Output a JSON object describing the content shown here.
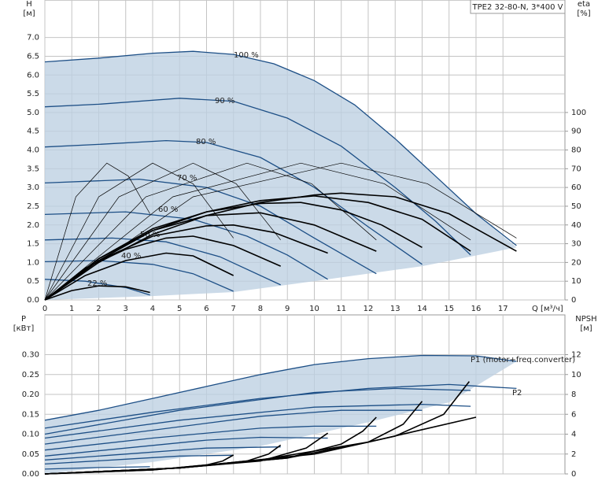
{
  "chart_data": [
    {
      "type": "line",
      "title": "TPE2 32-80-N, 3*400 V",
      "x_label": "Q [м³/ч]",
      "y_label": "H",
      "y_unit": "[м]",
      "y2_label": "eta",
      "y2_unit": "[%]",
      "xlim": [
        0,
        19.3
      ],
      "ylim": [
        0,
        8
      ],
      "y2lim": [
        0,
        160
      ],
      "grid": true,
      "x_tick_labels": true,
      "xticks": [
        0,
        1,
        2,
        3,
        4,
        5,
        6,
        7,
        8,
        9,
        10,
        11,
        12,
        13,
        14,
        15,
        16,
        17
      ],
      "yticks": [
        {
          "value": 0,
          "label": "0.0"
        },
        0.5,
        {
          "value": 1,
          "label": "1.0"
        },
        1.5,
        {
          "value": 2,
          "label": "2.0"
        },
        2.5,
        {
          "value": 3,
          "label": "3.0"
        },
        3.5,
        {
          "value": 4,
          "label": "4.0"
        },
        4.5,
        {
          "value": 5,
          "label": "5.0"
        },
        5.5,
        {
          "value": 6,
          "label": "6.0"
        },
        6.5,
        {
          "value": 7,
          "label": "7.0"
        }
      ],
      "y2ticks": [
        0,
        10,
        20,
        30,
        40,
        50,
        60,
        70,
        80,
        90,
        100
      ],
      "region": {
        "color": "#bccfe2",
        "x": [
          0,
          2,
          4,
          5.5,
          7,
          8.5,
          10,
          11.5,
          13,
          14.5,
          16,
          17.5,
          17.5,
          14,
          10.5,
          7,
          3.9,
          0
        ],
        "values": [
          6.35,
          6.45,
          6.58,
          6.63,
          6.55,
          6.3,
          5.85,
          5.2,
          4.3,
          3.3,
          2.3,
          1.4,
          1.4,
          0.9,
          0.55,
          0.21,
          0.1,
          0
        ]
      },
      "series": [
        {
          "name": "100 %",
          "color": "#1d4f86",
          "x": [
            0,
            2,
            4,
            5.5,
            7,
            8.5,
            10,
            11.5,
            13,
            14.5,
            16,
            17.5
          ],
          "values": [
            6.35,
            6.45,
            6.58,
            6.63,
            6.55,
            6.3,
            5.85,
            5.2,
            4.3,
            3.3,
            2.3,
            1.45
          ]
        },
        {
          "name": "90 %",
          "color": "#1d4f86",
          "x": [
            0,
            2,
            5,
            7,
            9,
            11,
            13,
            14.5,
            15.8
          ],
          "values": [
            5.15,
            5.22,
            5.38,
            5.3,
            4.85,
            4.1,
            3.0,
            2.1,
            1.2
          ]
        },
        {
          "name": "80 %",
          "color": "#1d4f86",
          "x": [
            0,
            2,
            4.5,
            6,
            8,
            10,
            12,
            14
          ],
          "values": [
            4.08,
            4.15,
            4.25,
            4.2,
            3.8,
            3.0,
            1.95,
            0.95
          ]
        },
        {
          "name": "70 %",
          "color": "#1d4f86",
          "x": [
            0,
            3.5,
            6,
            8,
            10,
            12.3
          ],
          "values": [
            3.12,
            3.22,
            3.0,
            2.5,
            1.65,
            0.7
          ]
        },
        {
          "name": "60 %",
          "color": "#1d4f86",
          "x": [
            0,
            3,
            5.5,
            7.5,
            9,
            10.5
          ],
          "values": [
            2.28,
            2.35,
            2.15,
            1.7,
            1.2,
            0.55
          ]
        },
        {
          "name": "50 %",
          "color": "#1d4f86",
          "x": [
            0,
            2.5,
            4.5,
            6.5,
            8.75
          ],
          "values": [
            1.6,
            1.65,
            1.55,
            1.15,
            0.4
          ]
        },
        {
          "name": "40 %",
          "color": "#1d4f86",
          "x": [
            0,
            2,
            4,
            5.5,
            7
          ],
          "values": [
            1.02,
            1.05,
            0.95,
            0.7,
            0.23
          ]
        },
        {
          "name": "22 %",
          "color": "#1d4f86",
          "x": [
            0,
            1.5,
            3,
            3.9
          ],
          "values": [
            0.55,
            0.5,
            0.33,
            0.13
          ]
        },
        {
          "axis": "y2",
          "color": "#000000",
          "x": [
            0,
            2,
            4,
            6,
            8,
            10,
            11,
            13,
            15,
            17.5
          ],
          "values": [
            0,
            20,
            35,
            45,
            52,
            56,
            57,
            55,
            46,
            26
          ]
        },
        {
          "axis": "y2",
          "color": "#000000",
          "x": [
            0,
            2,
            4,
            6,
            8,
            10,
            12,
            14,
            15.8
          ],
          "values": [
            0,
            21,
            37,
            47,
            53,
            55.5,
            52,
            43,
            26
          ]
        },
        {
          "axis": "y2",
          "color": "#000000",
          "x": [
            0,
            2,
            4,
            6,
            8,
            9.5,
            11,
            12.5,
            14
          ],
          "values": [
            0,
            22,
            38,
            47,
            51.5,
            52,
            48,
            40,
            28
          ]
        },
        {
          "axis": "y2",
          "color": "#000000",
          "x": [
            0,
            2,
            4,
            6,
            8,
            10,
            12.3
          ],
          "values": [
            0,
            22,
            37,
            45,
            46.5,
            40,
            26
          ]
        },
        {
          "axis": "y2",
          "color": "#000000",
          "x": [
            0,
            2,
            4,
            6,
            7,
            8.5,
            10.5
          ],
          "values": [
            0,
            21,
            34,
            39.5,
            40,
            36,
            25
          ]
        },
        {
          "axis": "y2",
          "color": "#000000",
          "x": [
            0,
            1.5,
            3,
            4.5,
            5.5,
            7,
            8.75
          ],
          "values": [
            0,
            17,
            27,
            33,
            34,
            29,
            18
          ]
        },
        {
          "axis": "y2",
          "color": "#000000",
          "x": [
            0,
            1.5,
            3,
            4.5,
            5.5,
            7
          ],
          "values": [
            0,
            13,
            21,
            25,
            23.5,
            13
          ]
        },
        {
          "axis": "y2",
          "color": "#000000",
          "x": [
            0,
            1,
            2,
            3,
            3.9
          ],
          "values": [
            0,
            5,
            7.5,
            7,
            4
          ]
        },
        {
          "axis": "y2",
          "color": "#000000",
          "weight": "thin",
          "x": [
            0,
            1.15,
            2.3,
            3.1,
            3.9
          ],
          "values": [
            0,
            55,
            73,
            66,
            46
          ]
        },
        {
          "axis": "y2",
          "color": "#000000",
          "weight": "thin",
          "x": [
            0,
            2,
            4,
            5.5,
            7
          ],
          "values": [
            0,
            55,
            73,
            62,
            33
          ]
        },
        {
          "axis": "y2",
          "color": "#000000",
          "weight": "thin",
          "x": [
            0,
            2.75,
            5.5,
            7.1,
            8.75
          ],
          "values": [
            0,
            55,
            73,
            62,
            32
          ]
        },
        {
          "axis": "y2",
          "color": "#000000",
          "weight": "thin",
          "x": [
            0,
            3.75,
            7.5,
            9.9,
            12.3
          ],
          "values": [
            0,
            55,
            73,
            62,
            32
          ]
        },
        {
          "axis": "y2",
          "color": "#000000",
          "weight": "thin",
          "x": [
            0,
            4.75,
            9.5,
            12.6,
            15.8
          ],
          "values": [
            0,
            55,
            73,
            62,
            32
          ]
        },
        {
          "axis": "y2",
          "color": "#000000",
          "weight": "thin",
          "x": [
            0,
            5.5,
            11,
            14.2,
            17.5
          ],
          "values": [
            0,
            55,
            73,
            62,
            33
          ]
        }
      ]
    },
    {
      "type": "line",
      "y_label": "P",
      "y_unit": "[кВт]",
      "y2_label": "NPSH",
      "y2_unit": "[м]",
      "xlim": [
        0,
        19.3
      ],
      "ylim": [
        0,
        0.4
      ],
      "y2lim": [
        0,
        16
      ],
      "grid": true,
      "x_tick_labels": false,
      "xticks": [
        0,
        1,
        2,
        3,
        4,
        5,
        6,
        7,
        8,
        9,
        10,
        11,
        12,
        13,
        14,
        15,
        16,
        17
      ],
      "yticks": [
        {
          "value": 0,
          "label": "0.00"
        },
        {
          "value": 0.05,
          "label": "0.05"
        },
        {
          "value": 0.1,
          "label": "0.10"
        },
        {
          "value": 0.15,
          "label": "0.15"
        },
        {
          "value": 0.2,
          "label": "0.20"
        },
        {
          "value": 0.25,
          "label": "0.25"
        },
        {
          "value": 0.3,
          "label": "0.30"
        }
      ],
      "y2ticks": [
        0,
        2,
        4,
        6,
        8,
        10,
        12
      ],
      "region": {
        "color": "#bccfe2",
        "x": [
          0,
          2,
          4,
          6,
          8,
          10,
          12,
          14,
          16,
          17.5,
          15,
          12,
          8,
          4,
          0
        ],
        "values": [
          0.135,
          0.16,
          0.19,
          0.22,
          0.25,
          0.275,
          0.29,
          0.298,
          0.297,
          0.283,
          0.18,
          0.13,
          0.07,
          0.03,
          0
        ]
      },
      "series": [
        {
          "name": "P1 (motor+freq.converter)",
          "color": "#1d4f86",
          "x": [
            0,
            2,
            4,
            6,
            8,
            10,
            12,
            14,
            16,
            17.5
          ],
          "values": [
            0.135,
            0.16,
            0.19,
            0.22,
            0.25,
            0.275,
            0.29,
            0.298,
            0.297,
            0.283
          ]
        },
        {
          "name": "P2",
          "color": "#1d4f86",
          "x": [
            0,
            4,
            8,
            12,
            15,
            17.5
          ],
          "values": [
            0.115,
            0.155,
            0.19,
            0.215,
            0.225,
            0.215
          ]
        },
        {
          "color": "#1d4f86",
          "x": [
            0,
            5,
            10,
            13,
            15.8
          ],
          "values": [
            0.1,
            0.16,
            0.205,
            0.215,
            0.21
          ]
        },
        {
          "color": "#1d4f86",
          "x": [
            0,
            5,
            10,
            14,
            15.8
          ],
          "values": [
            0.09,
            0.135,
            0.168,
            0.175,
            0.17
          ]
        },
        {
          "color": "#1d4f86",
          "x": [
            0,
            4,
            8,
            11,
            14
          ],
          "values": [
            0.075,
            0.11,
            0.145,
            0.16,
            0.16
          ]
        },
        {
          "color": "#1d4f86",
          "x": [
            0,
            4,
            8,
            10,
            12.3
          ],
          "values": [
            0.06,
            0.09,
            0.115,
            0.12,
            0.12
          ]
        },
        {
          "color": "#1d4f86",
          "x": [
            0,
            3,
            6,
            8,
            10.5
          ],
          "values": [
            0.045,
            0.065,
            0.085,
            0.092,
            0.09
          ]
        },
        {
          "color": "#1d4f86",
          "x": [
            0,
            3,
            6,
            8.75
          ],
          "values": [
            0.035,
            0.05,
            0.065,
            0.068
          ]
        },
        {
          "color": "#1d4f86",
          "x": [
            0,
            3,
            5,
            7
          ],
          "values": [
            0.025,
            0.037,
            0.045,
            0.047
          ]
        },
        {
          "color": "#1d4f86",
          "x": [
            0,
            2,
            3.9
          ],
          "values": [
            0.012,
            0.016,
            0.018
          ]
        },
        {
          "axis": "y2",
          "color": "#000000",
          "x": [
            0,
            4,
            8,
            12,
            16
          ],
          "values": [
            0,
            0.4,
            1.4,
            3.2,
            5.7
          ]
        },
        {
          "axis": "y2",
          "color": "#000000",
          "x": [
            0,
            5,
            10,
            13,
            14.8,
            15.75
          ],
          "values": [
            0,
            0.6,
            2.0,
            3.8,
            6,
            9.3
          ]
        },
        {
          "axis": "y2",
          "color": "#000000",
          "x": [
            0,
            5,
            9,
            12,
            13.3,
            14
          ],
          "values": [
            0,
            0.6,
            1.6,
            3.2,
            5,
            7.3
          ]
        },
        {
          "axis": "y2",
          "color": "#000000",
          "x": [
            0,
            5,
            9,
            11,
            11.8,
            12.3
          ],
          "values": [
            0,
            0.6,
            1.6,
            3,
            4.3,
            5.7
          ]
        },
        {
          "axis": "y2",
          "color": "#000000",
          "x": [
            0,
            5,
            8,
            9.7,
            10.5
          ],
          "values": [
            0,
            0.6,
            1.3,
            2.6,
            4.1
          ]
        },
        {
          "axis": "y2",
          "color": "#000000",
          "x": [
            0,
            5,
            7.5,
            8.3,
            8.75
          ],
          "values": [
            0,
            0.6,
            1.3,
            2,
            2.9
          ]
        },
        {
          "axis": "y2",
          "color": "#000000",
          "x": [
            0,
            4,
            6,
            6.6,
            7
          ],
          "values": [
            0,
            0.4,
            0.9,
            1.3,
            1.9
          ]
        }
      ]
    }
  ]
}
